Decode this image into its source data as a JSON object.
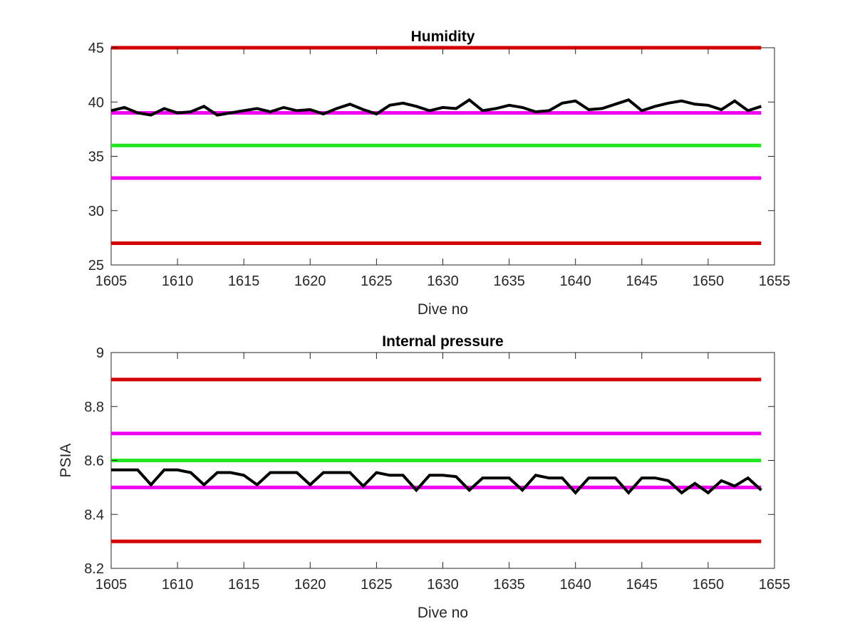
{
  "colors": {
    "limit": "#d40000",
    "warning": "#f000f0",
    "nominal": "#22e622",
    "data": "#000000"
  },
  "chart_data": [
    {
      "type": "line",
      "title": "Humidity",
      "xlabel": "Dive no",
      "ylabel": "",
      "xlim": [
        1605,
        1655
      ],
      "ylim": [
        25,
        45
      ],
      "xticks": [
        "1605",
        "1610",
        "1615",
        "1620",
        "1625",
        "1630",
        "1635",
        "1640",
        "1645",
        "1650",
        "1655"
      ],
      "yticks": [
        "25",
        "30",
        "35",
        "40",
        "45"
      ],
      "x_range": [
        1605,
        1654
      ],
      "reference_lines": [
        {
          "y": 45,
          "color": "#d40000"
        },
        {
          "y": 39,
          "color": "#f000f0"
        },
        {
          "y": 36,
          "color": "#22e622"
        },
        {
          "y": 33,
          "color": "#f000f0"
        },
        {
          "y": 27,
          "color": "#d40000"
        }
      ],
      "series": [
        {
          "x": [
            1605,
            1606,
            1607,
            1608,
            1609,
            1610,
            1611,
            1612,
            1613,
            1614,
            1615,
            1616,
            1617,
            1618,
            1619,
            1620,
            1621,
            1622,
            1623,
            1624,
            1625,
            1626,
            1627,
            1628,
            1629,
            1630,
            1631,
            1632,
            1633,
            1634,
            1635,
            1636,
            1637,
            1638,
            1639,
            1640,
            1641,
            1642,
            1643,
            1644,
            1645,
            1646,
            1647,
            1648,
            1649,
            1650,
            1651,
            1652,
            1653,
            1654
          ],
          "y": [
            39.2,
            39.5,
            39.0,
            38.8,
            39.4,
            39.0,
            39.1,
            39.6,
            38.8,
            39.0,
            39.2,
            39.4,
            39.1,
            39.5,
            39.2,
            39.3,
            38.9,
            39.4,
            39.8,
            39.3,
            38.9,
            39.7,
            39.9,
            39.6,
            39.2,
            39.5,
            39.4,
            40.2,
            39.2,
            39.4,
            39.7,
            39.5,
            39.1,
            39.2,
            39.9,
            40.1,
            39.3,
            39.4,
            39.8,
            40.2,
            39.2,
            39.6,
            39.9,
            40.1,
            39.8,
            39.7,
            39.3,
            40.1,
            39.2,
            39.6
          ]
        }
      ]
    },
    {
      "type": "line",
      "title": "Internal pressure",
      "xlabel": "Dive no",
      "ylabel": "PSIA",
      "xlim": [
        1605,
        1655
      ],
      "ylim": [
        8.2,
        9
      ],
      "xticks": [
        "1605",
        "1610",
        "1615",
        "1620",
        "1625",
        "1630",
        "1635",
        "1640",
        "1645",
        "1650",
        "1655"
      ],
      "yticks": [
        "8.2",
        "8.4",
        "8.6",
        "8.8",
        "9"
      ],
      "x_range": [
        1605,
        1654
      ],
      "reference_lines": [
        {
          "y": 8.9,
          "color": "#d40000"
        },
        {
          "y": 8.7,
          "color": "#f000f0"
        },
        {
          "y": 8.6,
          "color": "#22e622"
        },
        {
          "y": 8.5,
          "color": "#f000f0"
        },
        {
          "y": 8.3,
          "color": "#d40000"
        }
      ],
      "series": [
        {
          "x": [
            1605,
            1606,
            1607,
            1608,
            1609,
            1610,
            1611,
            1612,
            1613,
            1614,
            1615,
            1616,
            1617,
            1618,
            1619,
            1620,
            1621,
            1622,
            1623,
            1624,
            1625,
            1626,
            1627,
            1628,
            1629,
            1630,
            1631,
            1632,
            1633,
            1634,
            1635,
            1636,
            1637,
            1638,
            1639,
            1640,
            1641,
            1642,
            1643,
            1644,
            1645,
            1646,
            1647,
            1648,
            1649,
            1650,
            1651,
            1652,
            1653,
            1654
          ],
          "y": [
            8.565,
            8.565,
            8.565,
            8.51,
            8.565,
            8.565,
            8.555,
            8.51,
            8.555,
            8.555,
            8.545,
            8.51,
            8.555,
            8.555,
            8.555,
            8.51,
            8.555,
            8.555,
            8.555,
            8.505,
            8.555,
            8.545,
            8.545,
            8.49,
            8.545,
            8.545,
            8.54,
            8.49,
            8.535,
            8.535,
            8.535,
            8.49,
            8.545,
            8.535,
            8.535,
            8.48,
            8.535,
            8.535,
            8.535,
            8.48,
            8.535,
            8.535,
            8.525,
            8.48,
            8.515,
            8.48,
            8.525,
            8.505,
            8.535,
            8.49
          ]
        }
      ]
    }
  ]
}
